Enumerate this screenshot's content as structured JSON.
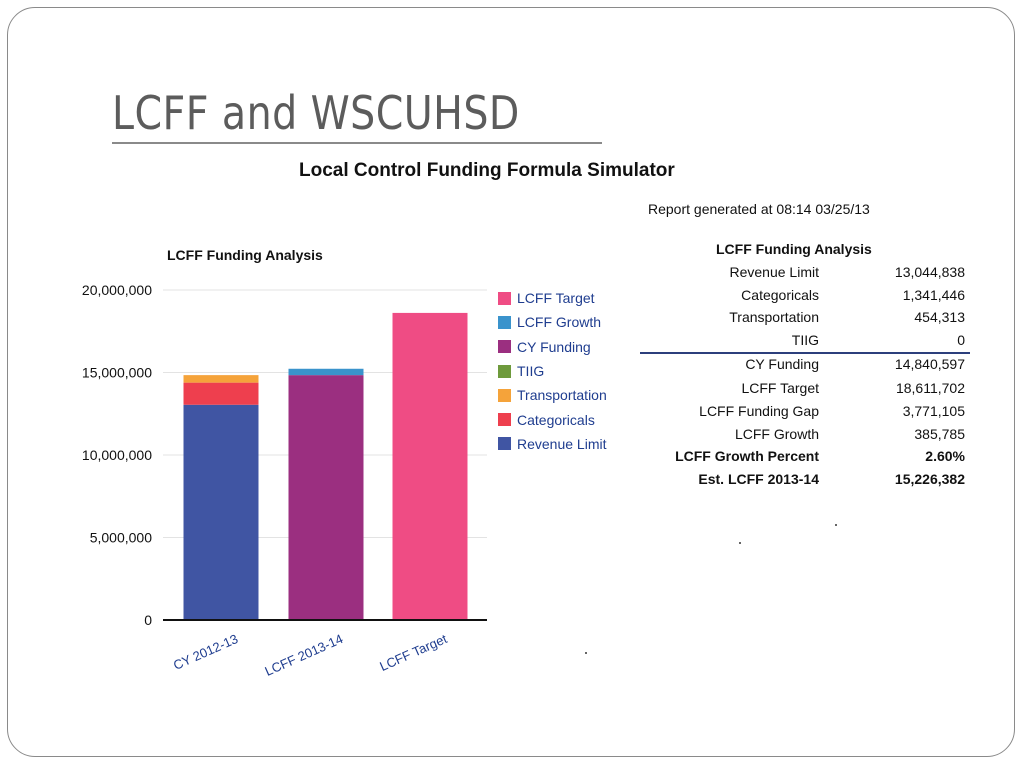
{
  "slide": {
    "title": "LCFF and WSCUHSD"
  },
  "report": {
    "title": "Local Control Funding Formula Simulator",
    "generated": "Report generated at 08:14 03/25/13"
  },
  "table": {
    "title": "LCFF Funding Analysis",
    "rows": [
      {
        "label": "Revenue Limit",
        "value": "13,044,838"
      },
      {
        "label": "Categoricals",
        "value": "1,341,446"
      },
      {
        "label": "Transportation",
        "value": "454,313"
      },
      {
        "label": "TIIG",
        "value": "0"
      },
      {
        "label": "CY Funding",
        "value": "14,840,597"
      },
      {
        "label": "LCFF Target",
        "value": "18,611,702"
      },
      {
        "label": "LCFF Funding Gap",
        "value": "3,771,105"
      },
      {
        "label": "LCFF Growth",
        "value": "385,785"
      },
      {
        "label": "LCFF Growth Percent",
        "value": "2.60%"
      },
      {
        "label": "Est. LCFF 2013-14",
        "value": "15,226,382"
      }
    ]
  },
  "chart_data": {
    "type": "bar",
    "stacked": true,
    "title": "LCFF Funding Analysis",
    "categories": [
      "CY 2012-13",
      "LCFF 2013-14",
      "LCFF Target"
    ],
    "ylim": [
      0,
      20000000
    ],
    "yticks": [
      "0",
      "5,000,000",
      "10,000,000",
      "15,000,000",
      "20,000,000"
    ],
    "ytick_values": [
      0,
      5000000,
      10000000,
      15000000,
      20000000
    ],
    "legend_position": "right",
    "series": [
      {
        "name": "Revenue Limit",
        "color": "#4055a3",
        "values": [
          13044838,
          0,
          0
        ]
      },
      {
        "name": "Categoricals",
        "color": "#ee3f4e",
        "values": [
          1341446,
          0,
          0
        ]
      },
      {
        "name": "Transportation",
        "color": "#f5a33a",
        "values": [
          454313,
          0,
          0
        ]
      },
      {
        "name": "TIIG",
        "color": "#6e9a3c",
        "values": [
          0,
          0,
          0
        ]
      },
      {
        "name": "CY Funding",
        "color": "#9b2f80",
        "values": [
          0,
          14840597,
          0
        ]
      },
      {
        "name": "LCFF Growth",
        "color": "#3a93cc",
        "values": [
          0,
          385785,
          0
        ]
      },
      {
        "name": "LCFF Target",
        "color": "#ef4c84",
        "values": [
          0,
          0,
          18611702
        ]
      }
    ],
    "legend_order": [
      "LCFF Target",
      "LCFF Growth",
      "CY Funding",
      "TIIG",
      "Transportation",
      "Categoricals",
      "Revenue Limit"
    ]
  }
}
